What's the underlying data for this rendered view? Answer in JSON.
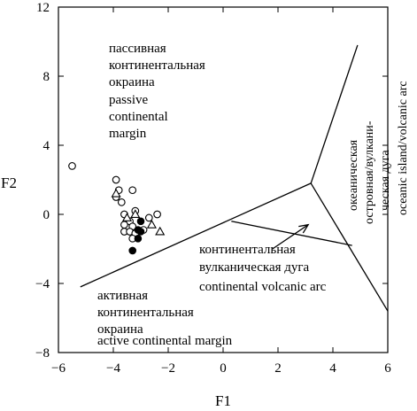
{
  "chart_data": {
    "type": "scatter",
    "title": "",
    "xlabel": "F1",
    "ylabel": "F2",
    "xlim": [
      -6,
      6
    ],
    "ylim": [
      -8,
      12
    ],
    "xticks": [
      -6,
      -4,
      -2,
      0,
      2,
      4,
      6
    ],
    "xtick_labels": [
      "−6",
      "−4",
      "−2",
      "0",
      "2",
      "4",
      "6"
    ],
    "yticks": [
      -8,
      -4,
      0,
      4,
      8,
      12
    ],
    "ytick_labels": [
      "−8",
      "−4",
      "0",
      "4",
      "8",
      "12"
    ],
    "grid": false,
    "boundaries": [
      {
        "name": "lower-left boundary",
        "points": [
          [
            -5.2,
            -4.2
          ],
          [
            3.2,
            1.8
          ]
        ]
      },
      {
        "name": "oceanic arc left boundary",
        "points": [
          [
            3.2,
            1.8
          ],
          [
            4.9,
            9.8
          ]
        ]
      },
      {
        "name": "oceanic arc right boundary",
        "points": [
          [
            3.2,
            1.8
          ],
          [
            6.0,
            -5.6
          ]
        ]
      },
      {
        "name": "continental arc upper boundary",
        "points": [
          [
            0.3,
            -0.4
          ],
          [
            4.7,
            -1.8
          ]
        ]
      }
    ],
    "arrow": {
      "from": [
        1.8,
        -2.0
      ],
      "to": [
        3.1,
        -0.6
      ]
    },
    "series": [
      {
        "marker": "open-circle",
        "points": [
          [
            -5.5,
            2.8
          ],
          [
            -3.9,
            2.0
          ],
          [
            -3.8,
            1.4
          ],
          [
            -3.9,
            1.0
          ],
          [
            -3.7,
            0.7
          ],
          [
            -3.3,
            1.4
          ],
          [
            -3.6,
            0.0
          ],
          [
            -3.4,
            -0.4
          ],
          [
            -3.2,
            0.2
          ],
          [
            -3.6,
            -0.6
          ],
          [
            -3.3,
            -0.7
          ],
          [
            -3.6,
            -1.0
          ],
          [
            -3.4,
            -1.0
          ],
          [
            -3.2,
            -1.1
          ],
          [
            -3.3,
            -1.4
          ],
          [
            -2.9,
            -0.9
          ],
          [
            -2.7,
            -0.2
          ],
          [
            -2.4,
            0.0
          ]
        ]
      },
      {
        "marker": "filled-circle",
        "points": [
          [
            -3.0,
            -0.4
          ],
          [
            -3.0,
            -1.0
          ],
          [
            -3.1,
            -0.9
          ],
          [
            -3.1,
            -1.4
          ],
          [
            -3.3,
            -2.1
          ]
        ]
      },
      {
        "marker": "open-triangle",
        "points": [
          [
            -3.9,
            1.2
          ],
          [
            -3.5,
            -0.2
          ],
          [
            -3.2,
            0.0
          ],
          [
            -2.6,
            -0.6
          ],
          [
            -2.3,
            -1.0
          ]
        ]
      }
    ],
    "regions": {
      "passive": [
        "пассивная",
        "континентальная",
        "окраина",
        "passive",
        "continental",
        "margin"
      ],
      "continental_arc": [
        "континентальная",
        "вулканическая дуга",
        "continental volcanic arc"
      ],
      "active": [
        "активная",
        "континентальная",
        "окраина",
        "active continental margin"
      ],
      "oceanic": [
        "океаническая",
        "островная/вулкани-",
        "ческая дуга",
        "oceanic island/volcanic arc"
      ]
    }
  }
}
